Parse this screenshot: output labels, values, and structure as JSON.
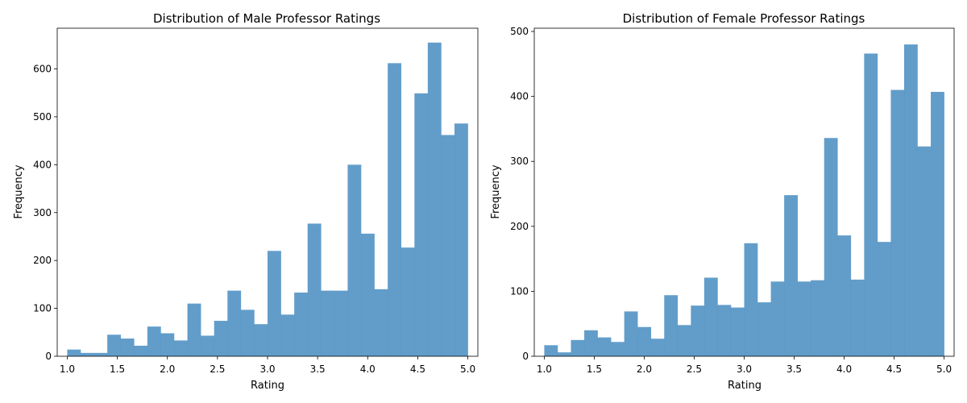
{
  "chart_data": [
    {
      "type": "bar",
      "title": "Distribution of Male Professor Ratings",
      "xlabel": "Rating",
      "ylabel": "Frequency",
      "xlim": [
        0.9,
        5.1
      ],
      "ylim": [
        0,
        685
      ],
      "xticks": [
        "1.0",
        "1.5",
        "2.0",
        "2.5",
        "3.0",
        "3.5",
        "4.0",
        "4.5",
        "5.0"
      ],
      "yticks": [
        "0",
        "100",
        "200",
        "300",
        "400",
        "500",
        "600"
      ],
      "bin_start": 1.0,
      "bin_end": 5.0,
      "bins": 30,
      "color": "#4c8fc3",
      "values": [
        14,
        7,
        7,
        45,
        37,
        22,
        62,
        48,
        33,
        110,
        43,
        74,
        137,
        97,
        67,
        220,
        87,
        133,
        277,
        137,
        137,
        400,
        256,
        140,
        612,
        227,
        549,
        655,
        462,
        486
      ],
      "grid": false
    },
    {
      "type": "bar",
      "title": "Distribution of Female Professor Ratings",
      "xlabel": "Rating",
      "ylabel": "Frequency",
      "xlim": [
        0.9,
        5.1
      ],
      "ylim": [
        0,
        505
      ],
      "xticks": [
        "1.0",
        "1.5",
        "2.0",
        "2.5",
        "3.0",
        "3.5",
        "4.0",
        "4.5",
        "5.0"
      ],
      "yticks": [
        "0",
        "100",
        "200",
        "300",
        "400",
        "500"
      ],
      "bin_start": 1.0,
      "bin_end": 5.0,
      "bins": 30,
      "color": "#4c8fc3",
      "values": [
        17,
        6,
        25,
        40,
        29,
        22,
        69,
        45,
        27,
        94,
        48,
        78,
        121,
        79,
        75,
        174,
        83,
        115,
        248,
        115,
        117,
        336,
        186,
        118,
        466,
        176,
        410,
        480,
        323,
        407
      ],
      "grid": false
    }
  ]
}
